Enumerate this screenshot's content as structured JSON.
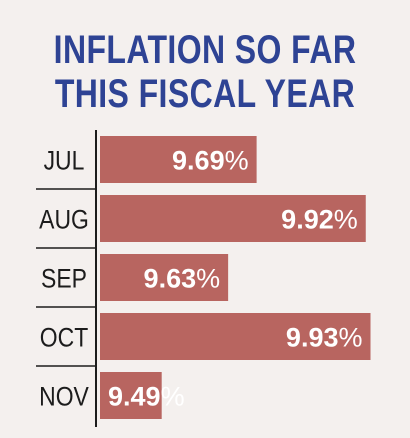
{
  "chart_data": {
    "type": "bar",
    "orientation": "horizontal",
    "title_lines": [
      "INFLATION SO FAR",
      "THIS FISCAL YEAR"
    ],
    "categories": [
      "JUL",
      "AUG",
      "SEP",
      "OCT",
      "NOV"
    ],
    "values": [
      9.69,
      9.92,
      9.63,
      9.93,
      9.49
    ],
    "value_labels": [
      "9.69",
      "9.92",
      "9.63",
      "9.93",
      "9.49"
    ],
    "value_suffix": "%",
    "xlim": [
      9.36,
      9.95
    ],
    "grid": false,
    "legend": "none"
  },
  "colors": {
    "title": "#2e4394",
    "bar": "#b86560",
    "label": "#1c1c1c",
    "value_text": "#ffffff",
    "axis": "#1c1c1c",
    "background": "#f4f0ee"
  }
}
